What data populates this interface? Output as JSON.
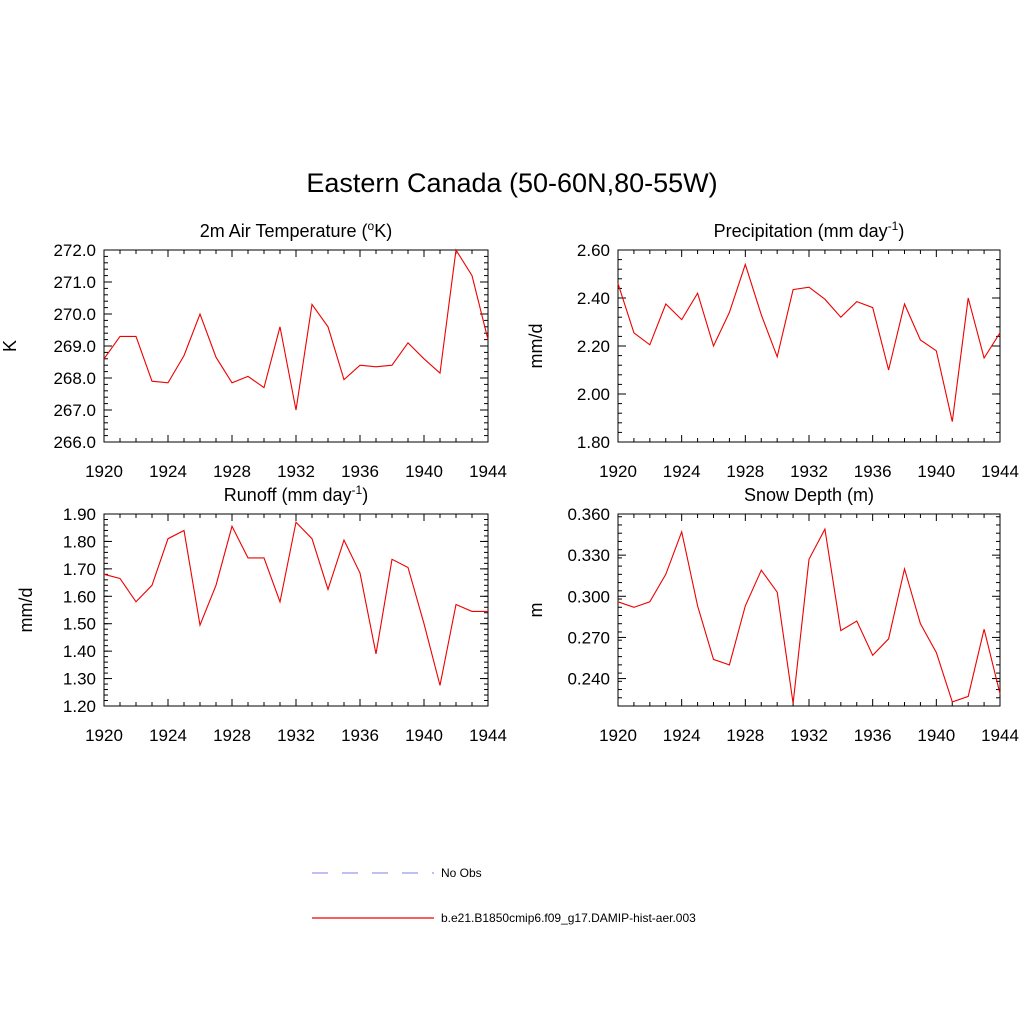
{
  "title": "Eastern Canada (50-60N,80-55W)",
  "legend": [
    {
      "label": "No Obs",
      "color": "#9999ee",
      "style": "dashed"
    },
    {
      "label": "b.e21.B1850cmip6.f09_g17.DAMIP-hist-aer.003",
      "color": "#ee0000",
      "style": "solid"
    }
  ],
  "chart_data": [
    {
      "type": "line",
      "title": "2m Air Temperature (°K)",
      "title_main": "2m Air Temperature (",
      "title_sup": "o",
      "title_tail": "K)",
      "ylabel": "K",
      "xlim": [
        1920,
        1944
      ],
      "ylim": [
        266.0,
        272.0
      ],
      "xticks": [
        "1920",
        "1924",
        "1928",
        "1932",
        "1936",
        "1940",
        "1944"
      ],
      "yticks": [
        "266.0",
        "267.0",
        "268.0",
        "269.0",
        "270.0",
        "271.0",
        "272.0"
      ],
      "x": [
        1920,
        1921,
        1922,
        1923,
        1924,
        1925,
        1926,
        1927,
        1928,
        1929,
        1930,
        1931,
        1932,
        1933,
        1934,
        1935,
        1936,
        1937,
        1938,
        1939,
        1940,
        1941,
        1942,
        1943,
        1944
      ],
      "series": [
        {
          "name": "b.e21.B1850cmip6.f09_g17.DAMIP-hist-aer.003",
          "color": "#ee0000",
          "values": [
            268.6,
            269.3,
            269.3,
            267.9,
            267.85,
            268.7,
            270.0,
            268.65,
            267.85,
            268.05,
            267.7,
            269.6,
            267.0,
            270.3,
            269.6,
            267.95,
            268.4,
            268.35,
            268.4,
            269.1,
            268.6,
            268.15,
            272.0,
            271.2,
            269.2
          ]
        }
      ]
    },
    {
      "type": "line",
      "title": "Precipitation (mm day-1)",
      "title_main": "Precipitation (mm day",
      "title_sup": "-1",
      "title_tail": ")",
      "ylabel": "mm/d",
      "xlim": [
        1920,
        1944
      ],
      "ylim": [
        1.8,
        2.6
      ],
      "xticks": [
        "1920",
        "1924",
        "1928",
        "1932",
        "1936",
        "1940",
        "1944"
      ],
      "yticks": [
        "1.80",
        "2.00",
        "2.20",
        "2.40",
        "2.60"
      ],
      "x": [
        1920,
        1921,
        1922,
        1923,
        1924,
        1925,
        1926,
        1927,
        1928,
        1929,
        1930,
        1931,
        1932,
        1933,
        1934,
        1935,
        1936,
        1937,
        1938,
        1939,
        1940,
        1941,
        1942,
        1943,
        1944
      ],
      "series": [
        {
          "name": "b.e21.B1850cmip6.f09_g17.DAMIP-hist-aer.003",
          "color": "#ee0000",
          "values": [
            2.46,
            2.255,
            2.205,
            2.375,
            2.31,
            2.42,
            2.2,
            2.34,
            2.54,
            2.33,
            2.155,
            2.435,
            2.445,
            2.395,
            2.32,
            2.385,
            2.36,
            2.1,
            2.375,
            2.225,
            2.18,
            1.885,
            2.4,
            2.15,
            2.255
          ]
        }
      ]
    },
    {
      "type": "line",
      "title": "Runoff (mm day-1)",
      "title_main": "Runoff (mm day",
      "title_sup": "-1",
      "title_tail": ")",
      "ylabel": "mm/d",
      "xlim": [
        1920,
        1944
      ],
      "ylim": [
        1.2,
        1.9
      ],
      "xticks": [
        "1920",
        "1924",
        "1928",
        "1932",
        "1936",
        "1940",
        "1944"
      ],
      "yticks": [
        "1.20",
        "1.30",
        "1.40",
        "1.50",
        "1.60",
        "1.70",
        "1.80",
        "1.90"
      ],
      "x": [
        1920,
        1921,
        1922,
        1923,
        1924,
        1925,
        1926,
        1927,
        1928,
        1929,
        1930,
        1931,
        1932,
        1933,
        1934,
        1935,
        1936,
        1937,
        1938,
        1939,
        1940,
        1941,
        1942,
        1943,
        1944
      ],
      "series": [
        {
          "name": "b.e21.B1850cmip6.f09_g17.DAMIP-hist-aer.003",
          "color": "#ee0000",
          "values": [
            1.68,
            1.665,
            1.58,
            1.64,
            1.81,
            1.84,
            1.495,
            1.64,
            1.855,
            1.74,
            1.74,
            1.58,
            1.87,
            1.81,
            1.625,
            1.805,
            1.685,
            1.39,
            1.735,
            1.705,
            1.5,
            1.275,
            1.57,
            1.545,
            1.545
          ]
        }
      ]
    },
    {
      "type": "line",
      "title": "Snow Depth (m)",
      "title_main": "Snow Depth (m)",
      "title_sup": "",
      "title_tail": "",
      "ylabel": "m",
      "xlim": [
        1920,
        1944
      ],
      "ylim": [
        0.22,
        0.36
      ],
      "xticks": [
        "1920",
        "1924",
        "1928",
        "1932",
        "1936",
        "1940",
        "1944"
      ],
      "yticks": [
        "0.240",
        "0.270",
        "0.300",
        "0.330",
        "0.360"
      ],
      "x": [
        1920,
        1921,
        1922,
        1923,
        1924,
        1925,
        1926,
        1927,
        1928,
        1929,
        1930,
        1931,
        1932,
        1933,
        1934,
        1935,
        1936,
        1937,
        1938,
        1939,
        1940,
        1941,
        1942,
        1943,
        1944
      ],
      "series": [
        {
          "name": "b.e21.B1850cmip6.f09_g17.DAMIP-hist-aer.003",
          "color": "#ee0000",
          "values": [
            0.296,
            0.292,
            0.296,
            0.316,
            0.347,
            0.293,
            0.254,
            0.25,
            0.293,
            0.319,
            0.303,
            0.222,
            0.327,
            0.349,
            0.275,
            0.282,
            0.257,
            0.269,
            0.32,
            0.28,
            0.259,
            0.223,
            0.227,
            0.276,
            0.229
          ]
        }
      ]
    }
  ]
}
